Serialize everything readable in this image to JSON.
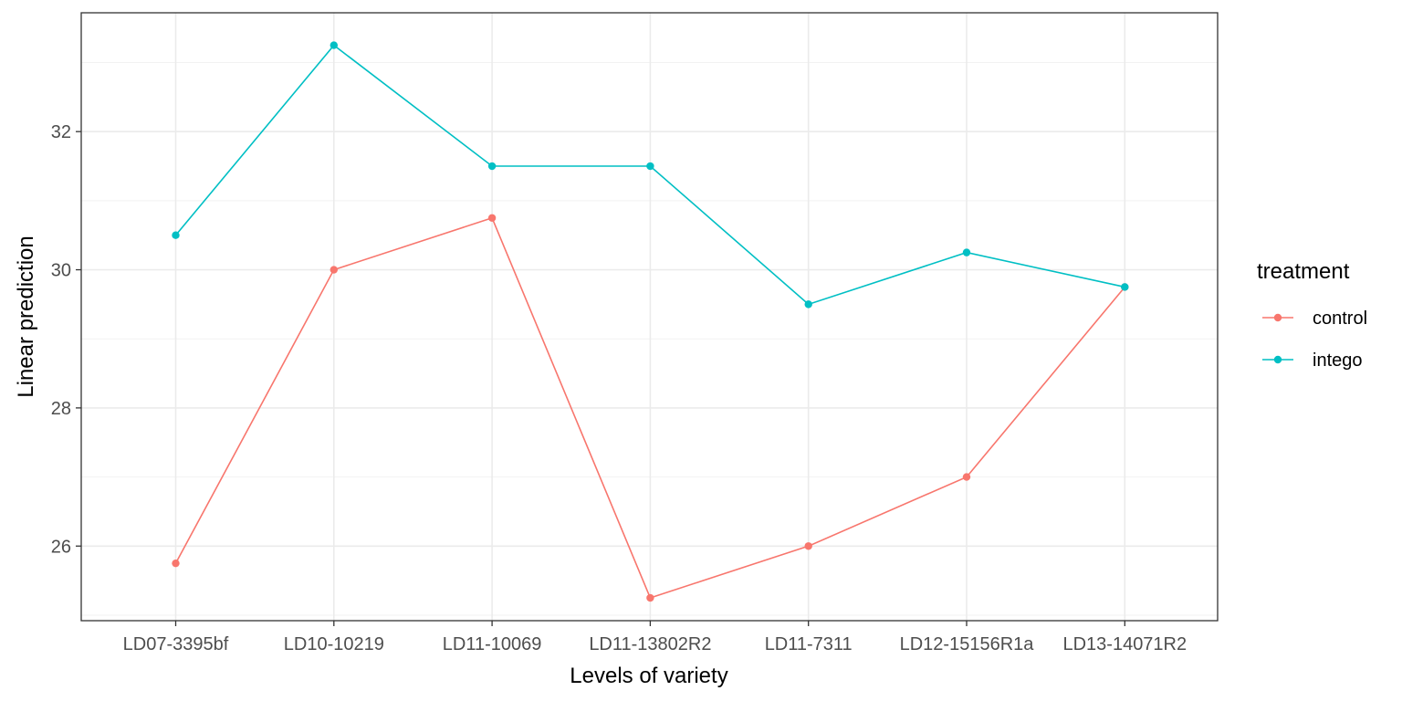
{
  "chart_data": {
    "type": "line",
    "title": "",
    "xlabel": "Levels of variety",
    "ylabel": "Linear prediction",
    "categories": [
      "LD07-3395bf",
      "LD10-10219",
      "LD11-10069",
      "LD11-13802R2",
      "LD11-7311",
      "LD12-15156R1a",
      "LD13-14071R2"
    ],
    "ylim": [
      24.92,
      33.72
    ],
    "yticks": [
      26,
      28,
      30,
      32
    ],
    "ytick_labels": [
      "26",
      "28",
      "30",
      "32"
    ],
    "grid": true,
    "legend": {
      "title": "treatment",
      "position": "right"
    },
    "series": [
      {
        "name": "control",
        "color": "#F8766D",
        "values": [
          25.75,
          30.0,
          30.75,
          25.25,
          26.0,
          27.0,
          29.75
        ]
      },
      {
        "name": "intego",
        "color": "#00BFC4",
        "values": [
          30.5,
          33.25,
          31.5,
          31.5,
          29.5,
          30.25,
          29.75
        ]
      }
    ]
  }
}
